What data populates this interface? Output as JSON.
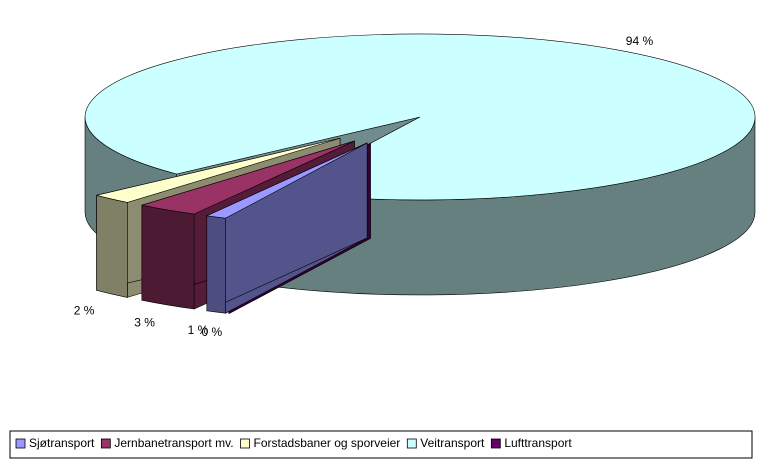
{
  "chart_data": {
    "type": "pie",
    "categories": [
      "Sjøtransport",
      "Jernbanetransport mv.",
      "Forstadsbaner og sporveier",
      "Veitransport",
      "Lufttransport"
    ],
    "values": [
      1,
      3,
      2,
      94,
      0
    ],
    "value_labels": [
      "1 %",
      "3 %",
      "2 %",
      "94 %",
      "0 %"
    ],
    "colors": [
      "#9999ff",
      "#993366",
      "#ffffcc",
      "#ccffff",
      "#660066"
    ],
    "legend": "bottom"
  }
}
